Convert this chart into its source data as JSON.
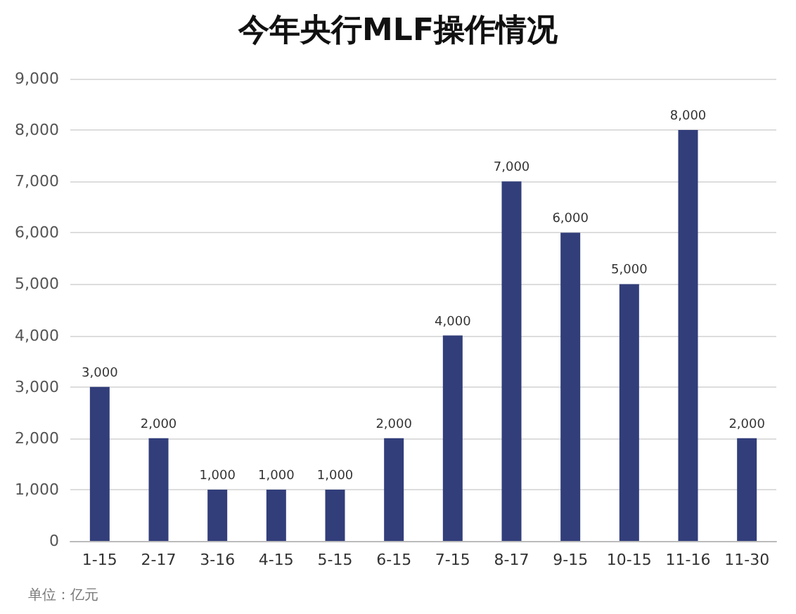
{
  "chart_data": {
    "type": "bar",
    "title": "今年央行MLF操作情况",
    "categories": [
      "1-15",
      "2-17",
      "3-16",
      "4-15",
      "5-15",
      "6-15",
      "7-15",
      "8-17",
      "9-15",
      "10-15",
      "11-16",
      "11-30"
    ],
    "values": [
      3000,
      2000,
      1000,
      1000,
      1000,
      2000,
      4000,
      7000,
      6000,
      5000,
      8000,
      2000
    ],
    "value_labels": [
      "3,000",
      "2,000",
      "1,000",
      "1,000",
      "1,000",
      "2,000",
      "4,000",
      "7,000",
      "6,000",
      "5,000",
      "8,000",
      "2,000"
    ],
    "color": "#323e7a",
    "ylim": [
      0,
      9000
    ],
    "yticks": [
      0,
      {
        "value": 1000,
        "label": "1,000"
      },
      {
        "value": 2000,
        "label": "2,000"
      },
      {
        "value": 3000,
        "label": "3,000"
      },
      {
        "value": 4000,
        "label": "4,000"
      },
      {
        "value": 5000,
        "label": "5,000"
      },
      {
        "value": 6000,
        "label": "6,000"
      },
      {
        "value": 7000,
        "label": "7,000"
      },
      {
        "value": 8000,
        "label": "8,000"
      },
      {
        "value": 9000,
        "label": "9,000"
      }
    ],
    "grid": "y",
    "annotations": [
      "单位：亿元"
    ]
  }
}
